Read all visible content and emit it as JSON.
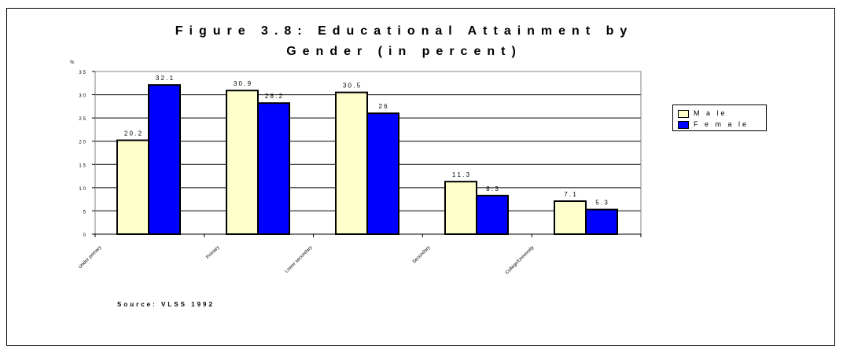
{
  "chart_data": {
    "type": "bar",
    "title_line1": "Figure 3.8: Educational Attainment by",
    "title_line2": "Gender (in percent)",
    "ylabel": "%",
    "xlabel": "",
    "ylim": [
      0,
      35
    ],
    "yticks": [
      0,
      5,
      10,
      15,
      20,
      25,
      30,
      35
    ],
    "grid": true,
    "legend_position": "right",
    "categories": [
      "Under primary",
      "Primary",
      "Lower secondary",
      "Secondary",
      "College/University"
    ],
    "series": [
      {
        "name": "Male",
        "color": "#ffffcc",
        "values": [
          20.2,
          30.9,
          30.5,
          11.3,
          7.1
        ],
        "labels": [
          "2 0 . 2",
          "3 0 . 9",
          "3 0 . 5",
          "1 1 . 3",
          "7 . 1"
        ]
      },
      {
        "name": "Female",
        "color": "#0000ff",
        "values": [
          32.1,
          28.2,
          26,
          8.3,
          5.3
        ],
        "labels": [
          "3 2 . 1",
          "2 8 . 2",
          "2 6",
          "8 . 3",
          "5 . 3"
        ]
      }
    ],
    "source": "Source: VLSS 1992"
  },
  "legend": {
    "male_label": "M a le",
    "female_label": "F e m a le"
  }
}
